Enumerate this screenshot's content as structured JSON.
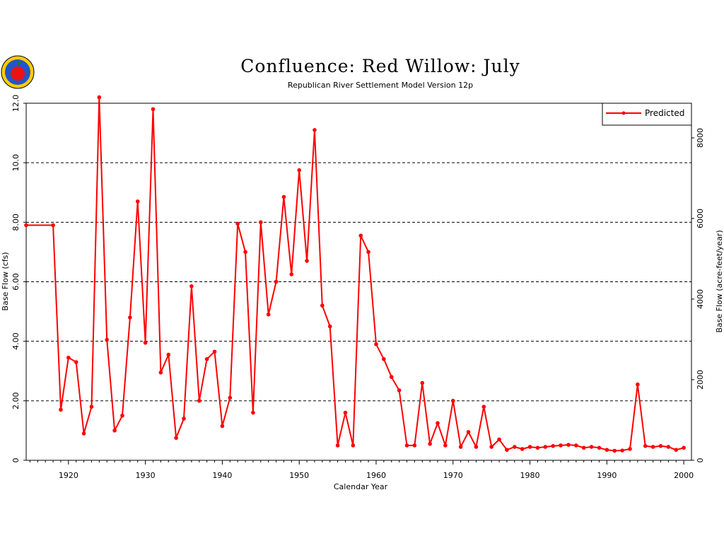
{
  "chart_data": {
    "type": "line",
    "title": "Confluence: Red Willow: July",
    "subtitle": "Republican River Settlement Model Version 12p",
    "xlabel": "Calendar Year",
    "ylabel": "Base Flow (cfs)",
    "ylabel_right": "Base Flow (acre-feet/year)",
    "xlim": [
      1914.5,
      2001.0
    ],
    "ylim": [
      0,
      12.0
    ],
    "ylim_right": [
      0,
      8860
    ],
    "x_ticks": [
      1920,
      1930,
      1940,
      1950,
      1960,
      1970,
      1980,
      1990,
      2000
    ],
    "x_tick_labels": [
      "1920",
      "1930",
      "1940",
      "1950",
      "1960",
      "1970",
      "1980",
      "1990",
      "2000"
    ],
    "y_ticks": [
      0,
      2,
      4,
      6,
      8,
      10,
      12
    ],
    "y_tick_labels": [
      "0",
      "2.00",
      "4.00",
      "6.00",
      "8.00",
      "10.0",
      "12.0"
    ],
    "y_right_ticks": [
      0,
      2000,
      4000,
      6000,
      8000
    ],
    "y_right_tick_labels": [
      "0",
      "2000",
      "4000",
      "6000",
      "8000"
    ],
    "grid": "horizontal dashed",
    "legend_position": "top-right",
    "series": [
      {
        "name": "Predicted",
        "color": "#ff0000",
        "x": [
          1914.5,
          1918,
          1919,
          1920,
          1921,
          1922,
          1923,
          1924,
          1925,
          1926,
          1927,
          1928,
          1929,
          1930,
          1931,
          1932,
          1933,
          1934,
          1935,
          1936,
          1937,
          1938,
          1939,
          1940,
          1941,
          1942,
          1943,
          1944,
          1945,
          1946,
          1947,
          1948,
          1949,
          1950,
          1951,
          1952,
          1953,
          1954,
          1955,
          1956,
          1957,
          1958,
          1959,
          1960,
          1961,
          1962,
          1963,
          1964,
          1965,
          1966,
          1967,
          1968,
          1969,
          1970,
          1971,
          1972,
          1973,
          1974,
          1975,
          1976,
          1977,
          1978,
          1979,
          1980,
          1981,
          1982,
          1983,
          1984,
          1985,
          1986,
          1987,
          1988,
          1989,
          1990,
          1991,
          1992,
          1993,
          1994,
          1995,
          1996,
          1997,
          1998,
          1999,
          2000
        ],
        "values": [
          7.9,
          7.9,
          1.7,
          3.45,
          3.3,
          0.9,
          1.8,
          12.2,
          4.05,
          1.0,
          1.5,
          4.8,
          8.7,
          3.95,
          11.8,
          2.95,
          3.55,
          0.75,
          1.4,
          5.85,
          2.0,
          3.4,
          3.65,
          1.15,
          2.1,
          7.95,
          7.0,
          1.6,
          8.0,
          4.9,
          6.0,
          8.85,
          6.25,
          9.75,
          6.7,
          11.1,
          5.2,
          4.5,
          0.5,
          1.6,
          0.5,
          7.55,
          7.0,
          3.9,
          3.4,
          2.8,
          2.35,
          0.5,
          0.5,
          2.6,
          0.55,
          1.25,
          0.5,
          2.0,
          0.45,
          0.95,
          0.45,
          1.8,
          0.45,
          0.7,
          0.35,
          0.45,
          0.38,
          0.45,
          0.42,
          0.45,
          0.48,
          0.5,
          0.52,
          0.5,
          0.42,
          0.45,
          0.42,
          0.35,
          0.32,
          0.33,
          0.38,
          2.55,
          0.48,
          0.45,
          0.48,
          0.45,
          0.35,
          0.42
        ]
      }
    ]
  }
}
